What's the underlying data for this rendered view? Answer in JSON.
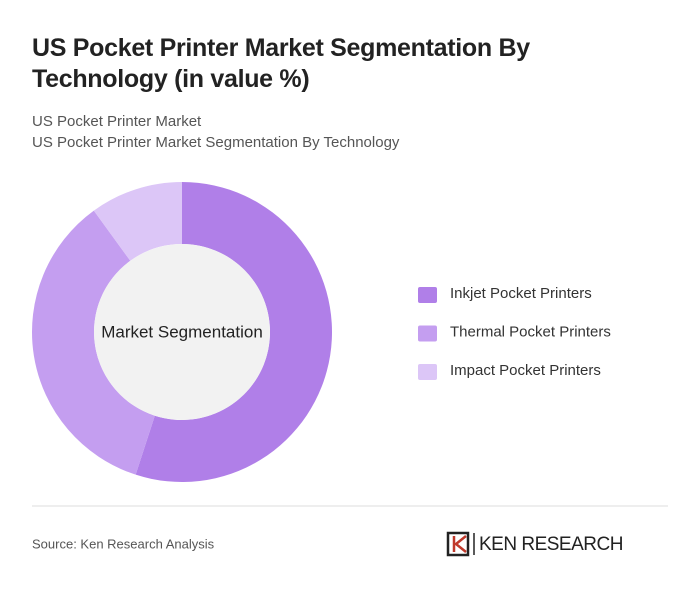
{
  "chart_data": {
    "type": "donut",
    "title": "US Pocket Printer Market Segmentation By Technology (in value %)",
    "subtitles": [
      "US Pocket Printer Market",
      "US Pocket Printer Market Segmentation By Technology"
    ],
    "center_label": "Market Segmentation",
    "categories": [
      "Inkjet Pocket Printers",
      "Thermal Pocket Printers",
      "Impact Pocket Printers"
    ],
    "values": [
      55,
      35,
      10
    ],
    "colors": [
      "#b07fe8",
      "#c49ef0",
      "#dcc6f7"
    ],
    "source": "Source: Ken Research Analysis",
    "logo": "KEN RESEARCH"
  }
}
